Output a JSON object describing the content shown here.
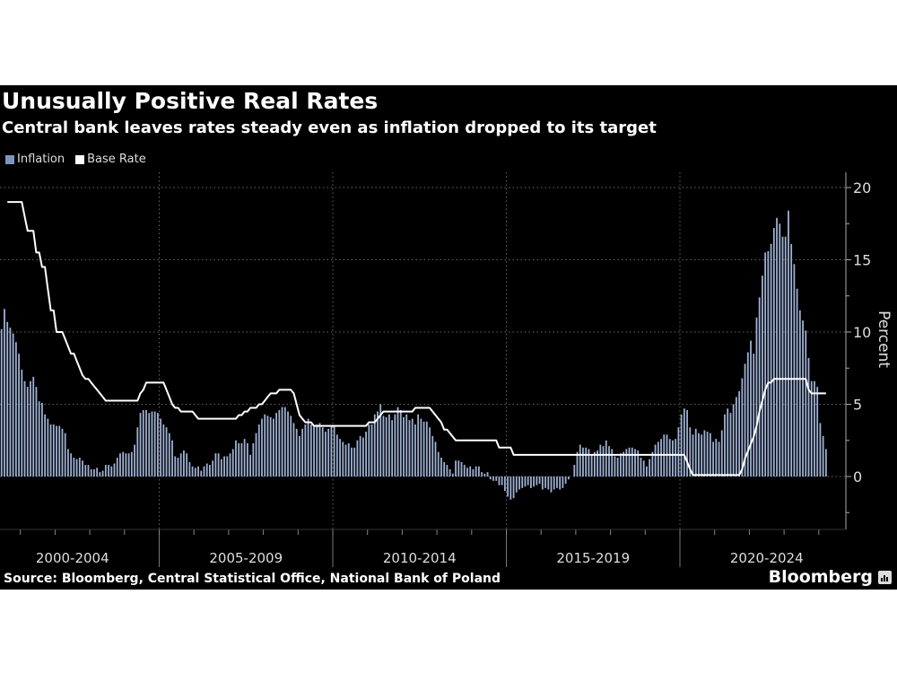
{
  "title": "Unusually Positive Real Rates",
  "subtitle": "Central bank leaves rates steady even as inflation dropped to its target",
  "source": "Source: Bloomberg, Central Statistical Office, National Bank of Poland",
  "brand": "Bloomberg",
  "chart_data": {
    "type": "bar+line",
    "ylabel": "Percent",
    "yticks": [
      20,
      15,
      10,
      5,
      0
    ],
    "ylim": [
      -3.7,
      20.8
    ],
    "xlim": [
      "2000-01",
      "2024-12"
    ],
    "xtick_labels": [
      "2000-2004",
      "2005-2009",
      "2010-2014",
      "2015-2019",
      "2020-2024"
    ],
    "grid": true,
    "legend_placement": "top-left",
    "colors": {
      "inflation": "#9db0d4",
      "base_rate": "#ffffff",
      "background": "#000000"
    },
    "series": [
      {
        "name": "Inflation",
        "type": "bar",
        "start": "2000-06",
        "frequency": "monthly",
        "values": [
          10.2,
          11.6,
          10.7,
          10.3,
          9.9,
          9.3,
          8.5,
          7.4,
          6.6,
          6.2,
          6.6,
          6.9,
          6.2,
          5.2,
          5.1,
          4.3,
          4.0,
          3.6,
          3.6,
          3.5,
          3.5,
          3.3,
          3.0,
          1.9,
          1.6,
          1.3,
          1.2,
          1.3,
          1.1,
          0.8,
          0.8,
          0.5,
          0.5,
          0.6,
          0.3,
          0.4,
          0.8,
          0.8,
          0.7,
          0.9,
          1.3,
          1.6,
          1.7,
          1.6,
          1.6,
          1.7,
          2.2,
          3.4,
          4.4,
          4.6,
          4.6,
          4.4,
          4.5,
          4.5,
          4.4,
          4.0,
          3.6,
          3.4,
          3.0,
          2.5,
          1.4,
          1.3,
          1.6,
          1.8,
          1.6,
          1.0,
          0.7,
          0.6,
          0.7,
          0.4,
          0.7,
          0.9,
          0.8,
          1.1,
          1.6,
          1.6,
          1.2,
          1.4,
          1.4,
          1.6,
          1.9,
          2.5,
          2.3,
          2.3,
          2.6,
          2.3,
          1.5,
          2.3,
          3.0,
          3.6,
          4.0,
          4.3,
          4.2,
          4.1,
          4.0,
          4.4,
          4.6,
          4.8,
          4.8,
          4.5,
          4.2,
          3.7,
          3.3,
          2.8,
          3.3,
          3.6,
          4.0,
          3.6,
          3.5,
          3.6,
          3.7,
          3.4,
          3.1,
          3.3,
          3.5,
          3.5,
          2.9,
          2.6,
          2.4,
          2.2,
          2.3,
          2.0,
          2.0,
          2.5,
          2.8,
          2.7,
          3.1,
          3.6,
          3.6,
          4.3,
          4.5,
          5.0,
          4.2,
          4.1,
          4.3,
          3.9,
          4.3,
          4.8,
          4.6,
          4.1,
          4.3,
          3.9,
          4.0,
          3.6,
          4.3,
          4.0,
          3.8,
          3.8,
          3.4,
          2.8,
          2.4,
          1.7,
          1.3,
          1.0,
          0.8,
          0.5,
          0.2,
          1.1,
          1.1,
          1.0,
          0.8,
          0.6,
          0.7,
          0.5,
          0.7,
          0.7,
          0.3,
          0.2,
          0.3,
          -0.2,
          -0.3,
          -0.3,
          -0.6,
          -0.6,
          -1.0,
          -1.4,
          -1.6,
          -1.5,
          -1.1,
          -0.9,
          -0.8,
          -0.7,
          -0.6,
          -0.8,
          -0.7,
          -0.6,
          -0.5,
          -0.9,
          -0.8,
          -0.9,
          -1.1,
          -0.9,
          -0.8,
          -0.9,
          -0.8,
          -0.5,
          -0.2,
          0.0,
          0.8,
          1.7,
          2.2,
          2.0,
          2.0,
          1.9,
          1.5,
          1.7,
          1.8,
          2.2,
          2.1,
          2.5,
          2.1,
          1.9,
          1.4,
          1.3,
          1.6,
          1.7,
          1.9,
          2.0,
          2.0,
          1.9,
          1.8,
          1.3,
          1.1,
          0.7,
          1.2,
          1.7,
          2.2,
          2.4,
          2.6,
          2.9,
          2.9,
          2.6,
          2.5,
          2.6,
          3.4,
          4.3,
          4.7,
          4.6,
          3.4,
          2.9,
          3.3,
          3.0,
          2.9,
          3.2,
          3.1,
          3.0,
          2.4,
          2.6,
          2.4,
          3.2,
          4.3,
          4.7,
          4.4,
          5.0,
          5.5,
          5.9,
          6.8,
          7.8,
          8.6,
          9.4,
          8.5,
          11.0,
          12.4,
          13.9,
          15.5,
          15.6,
          16.1,
          17.2,
          17.9,
          17.5,
          16.6,
          16.6,
          18.4,
          16.1,
          14.7,
          13.0,
          11.5,
          10.8,
          10.1,
          8.2,
          6.6,
          6.6,
          6.2,
          3.7,
          2.8,
          1.9
        ]
      },
      {
        "name": "Base Rate",
        "type": "line",
        "end": "2024-03",
        "steps": [
          [
            "2000-08",
            19.0
          ],
          [
            "2001-02",
            18.0
          ],
          [
            "2001-03",
            17.0
          ],
          [
            "2001-06",
            15.5
          ],
          [
            "2001-08",
            14.5
          ],
          [
            "2001-10",
            13.0
          ],
          [
            "2001-11",
            11.5
          ],
          [
            "2002-01",
            10.0
          ],
          [
            "2002-04",
            9.5
          ],
          [
            "2002-05",
            9.0
          ],
          [
            "2002-06",
            8.5
          ],
          [
            "2002-08",
            8.0
          ],
          [
            "2002-09",
            7.5
          ],
          [
            "2002-10",
            7.0
          ],
          [
            "2002-11",
            6.75
          ],
          [
            "2003-01",
            6.5
          ],
          [
            "2003-02",
            6.25
          ],
          [
            "2003-03",
            6.0
          ],
          [
            "2003-04",
            5.75
          ],
          [
            "2003-05",
            5.5
          ],
          [
            "2003-06",
            5.25
          ],
          [
            "2004-06",
            5.75
          ],
          [
            "2004-07",
            6.0
          ],
          [
            "2004-08",
            6.5
          ],
          [
            "2005-03",
            6.0
          ],
          [
            "2005-04",
            5.5
          ],
          [
            "2005-05",
            5.0
          ],
          [
            "2005-06",
            4.75
          ],
          [
            "2005-08",
            4.5
          ],
          [
            "2006-01",
            4.25
          ],
          [
            "2006-02",
            4.0
          ],
          [
            "2007-04",
            4.25
          ],
          [
            "2007-06",
            4.5
          ],
          [
            "2007-08",
            4.75
          ],
          [
            "2007-11",
            5.0
          ],
          [
            "2008-01",
            5.25
          ],
          [
            "2008-02",
            5.5
          ],
          [
            "2008-03",
            5.75
          ],
          [
            "2008-06",
            6.0
          ],
          [
            "2008-11",
            5.75
          ],
          [
            "2008-12",
            5.0
          ],
          [
            "2009-01",
            4.25
          ],
          [
            "2009-02",
            4.0
          ],
          [
            "2009-03",
            3.75
          ],
          [
            "2009-06",
            3.5
          ],
          [
            "2011-01",
            3.75
          ],
          [
            "2011-04",
            4.0
          ],
          [
            "2011-05",
            4.25
          ],
          [
            "2011-06",
            4.5
          ],
          [
            "2012-05",
            4.75
          ],
          [
            "2012-11",
            4.5
          ],
          [
            "2012-12",
            4.25
          ],
          [
            "2013-01",
            4.0
          ],
          [
            "2013-02",
            3.75
          ],
          [
            "2013-03",
            3.25
          ],
          [
            "2013-05",
            3.0
          ],
          [
            "2013-06",
            2.75
          ],
          [
            "2013-07",
            2.5
          ],
          [
            "2014-10",
            2.0
          ],
          [
            "2015-03",
            1.5
          ],
          [
            "2020-03",
            1.0
          ],
          [
            "2020-04",
            0.5
          ],
          [
            "2020-05",
            0.1
          ],
          [
            "2021-10",
            0.5
          ],
          [
            "2021-11",
            1.25
          ],
          [
            "2021-12",
            1.75
          ],
          [
            "2022-01",
            2.25
          ],
          [
            "2022-02",
            2.75
          ],
          [
            "2022-03",
            3.5
          ],
          [
            "2022-04",
            4.5
          ],
          [
            "2022-05",
            5.25
          ],
          [
            "2022-06",
            6.0
          ],
          [
            "2022-07",
            6.5
          ],
          [
            "2022-09",
            6.75
          ],
          [
            "2023-09",
            6.0
          ],
          [
            "2023-10",
            5.75
          ]
        ]
      }
    ]
  }
}
